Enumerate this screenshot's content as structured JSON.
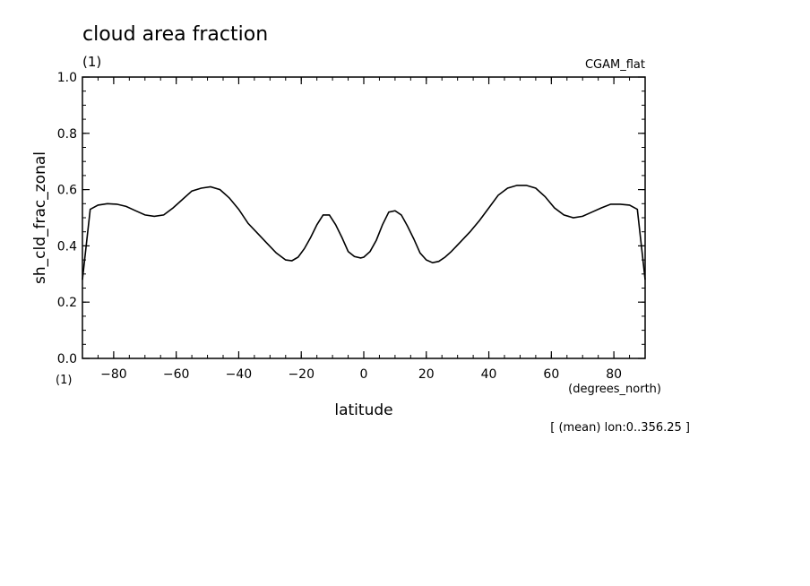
{
  "chart_data": {
    "type": "line",
    "title": "cloud area fraction",
    "subtitle_left": "(1)",
    "subtitle_right": "CGAM_flat",
    "xlabel": "latitude",
    "xunits": "(degrees_north)",
    "ylabel": "sh_cld_frac_zonal",
    "yunits": "(1)",
    "annotation": "[ (mean) lon:0..356.25 ]",
    "xlim": [
      -90,
      90
    ],
    "ylim": [
      0.0,
      1.0
    ],
    "x_ticks": [
      -80,
      -60,
      -40,
      -20,
      0,
      20,
      40,
      60,
      80
    ],
    "x_tick_labels": [
      "−80",
      "−60",
      "−40",
      "−20",
      "0",
      "20",
      "40",
      "60",
      "80"
    ],
    "y_ticks": [
      0.0,
      0.2,
      0.4,
      0.6,
      0.8,
      1.0
    ],
    "y_tick_labels": [
      "0.0",
      "0.2",
      "0.4",
      "0.6",
      "0.8",
      "1.0"
    ],
    "series": [
      {
        "x": [
          -90,
          -87.5,
          -85,
          -82,
          -79,
          -76,
          -73,
          -70,
          -67,
          -64,
          -61,
          -58,
          -55,
          -52,
          -49,
          -46,
          -43,
          -40,
          -37,
          -34,
          -31,
          -28,
          -25,
          -23,
          -21,
          -19,
          -17,
          -15,
          -13,
          -11,
          -9,
          -7,
          -5,
          -3,
          -1,
          0,
          2,
          4,
          6,
          8,
          10,
          12,
          14,
          16,
          18,
          20,
          22,
          24,
          26,
          28,
          31,
          34,
          37,
          40,
          43,
          46,
          49,
          52,
          55,
          58,
          61,
          64,
          67,
          70,
          73,
          76,
          79,
          82,
          85,
          87.5,
          90
        ],
        "y": [
          0.28,
          0.53,
          0.545,
          0.55,
          0.548,
          0.54,
          0.525,
          0.51,
          0.505,
          0.51,
          0.535,
          0.565,
          0.595,
          0.605,
          0.61,
          0.6,
          0.57,
          0.53,
          0.48,
          0.445,
          0.41,
          0.375,
          0.35,
          0.347,
          0.36,
          0.39,
          0.43,
          0.475,
          0.51,
          0.51,
          0.475,
          0.43,
          0.38,
          0.362,
          0.357,
          0.36,
          0.38,
          0.42,
          0.475,
          0.52,
          0.525,
          0.51,
          0.47,
          0.425,
          0.375,
          0.35,
          0.34,
          0.345,
          0.36,
          0.38,
          0.415,
          0.45,
          0.49,
          0.535,
          0.58,
          0.605,
          0.615,
          0.615,
          0.605,
          0.575,
          0.535,
          0.51,
          0.5,
          0.505,
          0.52,
          0.535,
          0.548,
          0.548,
          0.545,
          0.53,
          0.28
        ]
      }
    ]
  }
}
